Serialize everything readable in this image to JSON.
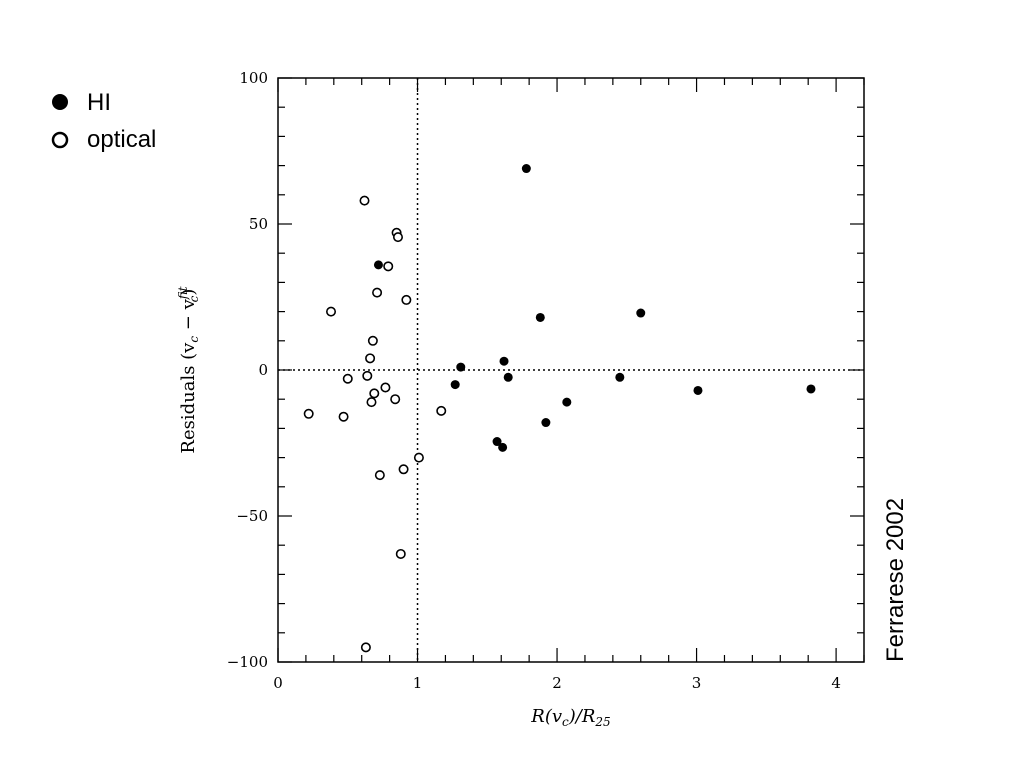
{
  "chart_data": {
    "type": "scatter",
    "xlabel_parts": [
      "R(v",
      "c",
      ")/R",
      "25"
    ],
    "ylabel_parts": [
      "Residuals (v",
      "c",
      " − v",
      "fit",
      "c",
      ")"
    ],
    "xlim": [
      0,
      4.2
    ],
    "ylim": [
      -100,
      100
    ],
    "x_ticks": [
      "0",
      "1",
      "2",
      "3",
      "4"
    ],
    "y_ticks": [
      "−100",
      "−50",
      "0",
      "50",
      "100"
    ],
    "reference_lines": {
      "x": 1,
      "y": 0
    },
    "legend": {
      "position": "top-left"
    },
    "annotation": "Ferrarese 2002",
    "series": [
      {
        "name": "HI",
        "marker": "filled-circle",
        "points": [
          [
            0.72,
            36
          ],
          [
            1.27,
            -5
          ],
          [
            1.31,
            1
          ],
          [
            1.57,
            -24.5
          ],
          [
            1.61,
            -26.5
          ],
          [
            1.62,
            3
          ],
          [
            1.65,
            -2.5
          ],
          [
            1.78,
            69
          ],
          [
            1.88,
            18
          ],
          [
            1.92,
            -18
          ],
          [
            2.07,
            -11
          ],
          [
            2.45,
            -2.5
          ],
          [
            2.6,
            19.5
          ],
          [
            3.01,
            -7
          ],
          [
            3.82,
            -6.5
          ]
        ]
      },
      {
        "name": "optical",
        "marker": "open-circle",
        "points": [
          [
            0.22,
            -15
          ],
          [
            0.38,
            20
          ],
          [
            0.47,
            -16
          ],
          [
            0.5,
            -3
          ],
          [
            0.62,
            58
          ],
          [
            0.63,
            -95
          ],
          [
            0.64,
            -2
          ],
          [
            0.66,
            4
          ],
          [
            0.67,
            -11
          ],
          [
            0.68,
            10
          ],
          [
            0.69,
            -8
          ],
          [
            0.71,
            26.5
          ],
          [
            0.73,
            -36
          ],
          [
            0.77,
            -6
          ],
          [
            0.79,
            35.5
          ],
          [
            0.84,
            -10
          ],
          [
            0.85,
            47
          ],
          [
            0.86,
            45.5
          ],
          [
            0.88,
            -63
          ],
          [
            0.9,
            -34
          ],
          [
            0.92,
            24
          ],
          [
            1.01,
            -30
          ],
          [
            1.17,
            -14
          ]
        ]
      }
    ]
  }
}
